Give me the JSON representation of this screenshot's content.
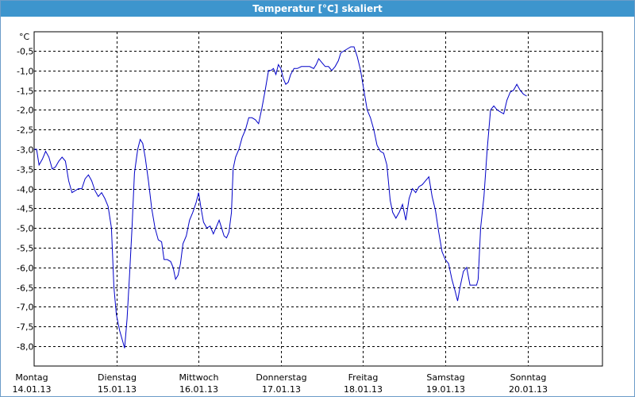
{
  "window": {
    "title": "Temperatur [°C] skaliert"
  },
  "chart_data": {
    "type": "line",
    "title": "Temperatur [°C] skaliert",
    "ylabel": "°C",
    "ylim": [
      -8.5,
      0
    ],
    "xlim": [
      0,
      7
    ],
    "grid": true,
    "yticks": [
      "-0,5",
      "-1,0",
      "-1,5",
      "-2,0",
      "-2,5",
      "-3,0",
      "-3,5",
      "-4,0",
      "-4,5",
      "-5,0",
      "-5,5",
      "-6,0",
      "-6,5",
      "-7,0",
      "-7,5",
      "-8,0"
    ],
    "ytick_values": [
      -0.5,
      -1.0,
      -1.5,
      -2.0,
      -2.5,
      -3.0,
      -3.5,
      -4.0,
      -4.5,
      -5.0,
      -5.5,
      -6.0,
      -6.5,
      -7.0,
      -7.5,
      -8.0
    ],
    "xticks": [
      {
        "day": "Montag",
        "date": "14.01.13"
      },
      {
        "day": "Dienstag",
        "date": "15.01.13"
      },
      {
        "day": "Mittwoch",
        "date": "16.01.13"
      },
      {
        "day": "Donnerstag",
        "date": "17.01.13"
      },
      {
        "day": "Freitag",
        "date": "18.01.13"
      },
      {
        "day": "Samstag",
        "date": "19.01.13"
      },
      {
        "day": "Sonntag",
        "date": "20.01.13"
      }
    ],
    "series": [
      {
        "color": "#0000c8",
        "points": [
          [
            0.0,
            -3.0
          ],
          [
            0.03,
            -3.0
          ],
          [
            0.06,
            -3.4
          ],
          [
            0.1,
            -3.25
          ],
          [
            0.14,
            -3.05
          ],
          [
            0.18,
            -3.2
          ],
          [
            0.22,
            -3.5
          ],
          [
            0.26,
            -3.45
          ],
          [
            0.3,
            -3.3
          ],
          [
            0.34,
            -3.2
          ],
          [
            0.38,
            -3.3
          ],
          [
            0.42,
            -3.8
          ],
          [
            0.46,
            -4.1
          ],
          [
            0.5,
            -4.05
          ],
          [
            0.54,
            -4.0
          ],
          [
            0.58,
            -4.0
          ],
          [
            0.62,
            -3.75
          ],
          [
            0.66,
            -3.65
          ],
          [
            0.7,
            -3.8
          ],
          [
            0.74,
            -4.05
          ],
          [
            0.78,
            -4.2
          ],
          [
            0.82,
            -4.1
          ],
          [
            0.86,
            -4.25
          ],
          [
            0.9,
            -4.45
          ],
          [
            0.94,
            -5.0
          ],
          [
            0.97,
            -6.5
          ],
          [
            1.0,
            -7.2
          ],
          [
            1.04,
            -7.6
          ],
          [
            1.08,
            -7.9
          ],
          [
            1.1,
            -8.05
          ],
          [
            1.13,
            -7.3
          ],
          [
            1.16,
            -6.2
          ],
          [
            1.19,
            -5.0
          ],
          [
            1.22,
            -3.6
          ],
          [
            1.26,
            -3.0
          ],
          [
            1.29,
            -2.75
          ],
          [
            1.32,
            -2.85
          ],
          [
            1.35,
            -3.2
          ],
          [
            1.39,
            -3.8
          ],
          [
            1.43,
            -4.5
          ],
          [
            1.47,
            -5.0
          ],
          [
            1.51,
            -5.3
          ],
          [
            1.55,
            -5.35
          ],
          [
            1.58,
            -5.8
          ],
          [
            1.62,
            -5.8
          ],
          [
            1.66,
            -5.85
          ],
          [
            1.69,
            -6.0
          ],
          [
            1.72,
            -6.3
          ],
          [
            1.75,
            -6.2
          ],
          [
            1.78,
            -5.9
          ],
          [
            1.81,
            -5.4
          ],
          [
            1.85,
            -5.2
          ],
          [
            1.89,
            -4.8
          ],
          [
            1.93,
            -4.6
          ],
          [
            1.97,
            -4.35
          ],
          [
            2.0,
            -4.1
          ],
          [
            2.03,
            -4.5
          ],
          [
            2.06,
            -4.85
          ],
          [
            2.1,
            -5.0
          ],
          [
            2.14,
            -4.95
          ],
          [
            2.18,
            -5.15
          ],
          [
            2.22,
            -4.95
          ],
          [
            2.25,
            -4.8
          ],
          [
            2.28,
            -5.0
          ],
          [
            2.31,
            -5.2
          ],
          [
            2.34,
            -5.25
          ],
          [
            2.37,
            -5.1
          ],
          [
            2.4,
            -4.6
          ],
          [
            2.42,
            -3.5
          ],
          [
            2.45,
            -3.2
          ],
          [
            2.49,
            -3.0
          ],
          [
            2.53,
            -2.7
          ],
          [
            2.57,
            -2.5
          ],
          [
            2.61,
            -2.2
          ],
          [
            2.65,
            -2.2
          ],
          [
            2.69,
            -2.25
          ],
          [
            2.73,
            -2.35
          ],
          [
            2.77,
            -1.95
          ],
          [
            2.81,
            -1.5
          ],
          [
            2.85,
            -1.0
          ],
          [
            2.88,
            -1.0
          ],
          [
            2.91,
            -0.95
          ],
          [
            2.94,
            -1.1
          ],
          [
            2.97,
            -0.85
          ],
          [
            3.0,
            -0.95
          ],
          [
            3.03,
            -1.2
          ],
          [
            3.06,
            -1.35
          ],
          [
            3.09,
            -1.3
          ],
          [
            3.12,
            -1.1
          ],
          [
            3.16,
            -0.95
          ],
          [
            3.2,
            -0.95
          ],
          [
            3.25,
            -0.9
          ],
          [
            3.3,
            -0.9
          ],
          [
            3.35,
            -0.9
          ],
          [
            3.4,
            -0.95
          ],
          [
            3.43,
            -0.85
          ],
          [
            3.46,
            -0.7
          ],
          [
            3.5,
            -0.8
          ],
          [
            3.54,
            -0.9
          ],
          [
            3.58,
            -0.9
          ],
          [
            3.62,
            -1.0
          ],
          [
            3.66,
            -0.9
          ],
          [
            3.7,
            -0.75
          ],
          [
            3.73,
            -0.55
          ],
          [
            3.77,
            -0.5
          ],
          [
            3.81,
            -0.45
          ],
          [
            3.85,
            -0.4
          ],
          [
            3.89,
            -0.4
          ],
          [
            3.93,
            -0.65
          ],
          [
            3.97,
            -1.0
          ],
          [
            4.01,
            -1.5
          ],
          [
            4.05,
            -2.0
          ],
          [
            4.09,
            -2.2
          ],
          [
            4.13,
            -2.5
          ],
          [
            4.17,
            -2.9
          ],
          [
            4.21,
            -3.05
          ],
          [
            4.25,
            -3.1
          ],
          [
            4.29,
            -3.4
          ],
          [
            4.33,
            -4.3
          ],
          [
            4.36,
            -4.6
          ],
          [
            4.4,
            -4.75
          ],
          [
            4.44,
            -4.6
          ],
          [
            4.48,
            -4.4
          ],
          [
            4.52,
            -4.8
          ],
          [
            4.56,
            -4.25
          ],
          [
            4.6,
            -4.0
          ],
          [
            4.64,
            -4.1
          ],
          [
            4.68,
            -3.95
          ],
          [
            4.72,
            -3.9
          ],
          [
            4.76,
            -3.8
          ],
          [
            4.8,
            -3.7
          ],
          [
            4.84,
            -4.2
          ],
          [
            4.88,
            -4.55
          ],
          [
            4.92,
            -5.1
          ],
          [
            4.96,
            -5.6
          ],
          [
            5.0,
            -5.8
          ],
          [
            5.04,
            -5.9
          ],
          [
            5.08,
            -6.3
          ],
          [
            5.12,
            -6.6
          ],
          [
            5.15,
            -6.85
          ],
          [
            5.18,
            -6.5
          ],
          [
            5.22,
            -6.1
          ],
          [
            5.26,
            -6.0
          ],
          [
            5.3,
            -6.45
          ],
          [
            5.34,
            -6.45
          ],
          [
            5.38,
            -6.45
          ],
          [
            5.4,
            -6.3
          ],
          [
            5.43,
            -5.0
          ],
          [
            5.47,
            -4.2
          ],
          [
            5.51,
            -3.0
          ],
          [
            5.55,
            -2.0
          ],
          [
            5.59,
            -1.9
          ],
          [
            5.63,
            -2.0
          ],
          [
            5.67,
            -2.05
          ],
          [
            5.71,
            -2.1
          ],
          [
            5.75,
            -1.75
          ],
          [
            5.79,
            -1.55
          ],
          [
            5.83,
            -1.5
          ],
          [
            5.87,
            -1.35
          ],
          [
            5.91,
            -1.5
          ],
          [
            5.95,
            -1.6
          ],
          [
            5.99,
            -1.65
          ]
        ]
      }
    ]
  }
}
